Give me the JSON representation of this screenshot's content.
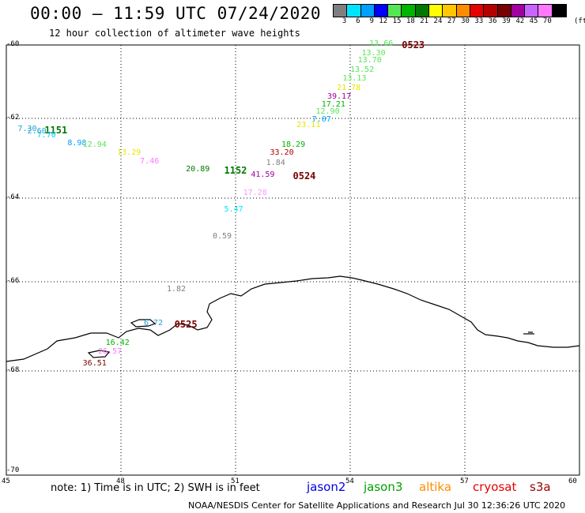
{
  "title": "00:00 – 11:59 UTC 07/24/2020",
  "subtitle": "12 hour collection of altimeter wave heights",
  "colorbar": {
    "unit": "(ft)",
    "bins": [
      {
        "label": "3",
        "color": "#7f7f7f"
      },
      {
        "label": "6",
        "color": "#00e5ff"
      },
      {
        "label": "9",
        "color": "#00a0ff"
      },
      {
        "label": "12",
        "color": "#0000ff"
      },
      {
        "label": "15",
        "color": "#55e655"
      },
      {
        "label": "18",
        "color": "#00b400"
      },
      {
        "label": "21",
        "color": "#007800"
      },
      {
        "label": "24",
        "color": "#ffff00"
      },
      {
        "label": "27",
        "color": "#ffc800"
      },
      {
        "label": "30",
        "color": "#ff8c00"
      },
      {
        "label": "33",
        "color": "#e60000"
      },
      {
        "label": "36",
        "color": "#b40000"
      },
      {
        "label": "39",
        "color": "#780000"
      },
      {
        "label": "42",
        "color": "#a000a0"
      },
      {
        "label": "45",
        "color": "#c864ff"
      },
      {
        "label": "70",
        "color": "#ff78ff"
      },
      {
        "label": "",
        "color": "#000000"
      }
    ]
  },
  "axes": {
    "lat_labels": [
      "-60",
      "-62",
      "-64",
      "-66",
      "-68",
      "-70"
    ],
    "lon_labels": [
      "45",
      "48",
      "51",
      "54",
      "57",
      "60"
    ]
  },
  "observations": [
    {
      "text": "7.30",
      "color": "#20a0d0",
      "lon": 45.3,
      "lat": -62.3
    },
    {
      "text": "2.60",
      "color": "#20a0d0",
      "lon": 45.55,
      "lat": -62.35
    },
    {
      "text": "1151",
      "color": "#007800",
      "lon": 46.0,
      "lat": -62.3,
      "bold": true
    },
    {
      "text": "7.70",
      "color": "#00c8ff",
      "lon": 45.8,
      "lat": -62.45
    },
    {
      "text": "8.98",
      "color": "#00a0ff",
      "lon": 46.6,
      "lat": -62.65
    },
    {
      "text": "12.94",
      "color": "#55e655",
      "lon": 47.0,
      "lat": -62.7
    },
    {
      "text": "13.29",
      "color": "#e6e600",
      "lon": 47.9,
      "lat": -62.9
    },
    {
      "text": "7.46",
      "color": "#ff78ff",
      "lon": 48.5,
      "lat": -63.1
    },
    {
      "text": "20.89",
      "color": "#007800",
      "lon": 49.7,
      "lat": -63.3
    },
    {
      "text": "1152",
      "color": "#007800",
      "lon": 50.7,
      "lat": -63.3,
      "bold": true
    },
    {
      "text": "17.28",
      "color": "#ff96ff",
      "lon": 51.2,
      "lat": -63.9
    },
    {
      "text": "5.47",
      "color": "#00e5ff",
      "lon": 50.7,
      "lat": -64.3
    },
    {
      "text": "0.59",
      "color": "#7f7f7f",
      "lon": 50.4,
      "lat": -64.95
    },
    {
      "text": "13.66",
      "color": "#55e655",
      "lon": 54.5,
      "lat": -60.0
    },
    {
      "text": "0523",
      "color": "#7a0000",
      "lon": 55.35,
      "lat": -60.0,
      "bold": true
    },
    {
      "text": "13.30",
      "color": "#55e655",
      "lon": 54.3,
      "lat": -60.25
    },
    {
      "text": "13.70",
      "color": "#55e655",
      "lon": 54.2,
      "lat": -60.45
    },
    {
      "text": "13.52",
      "color": "#55e655",
      "lon": 54.0,
      "lat": -60.7
    },
    {
      "text": "13.13",
      "color": "#55e655",
      "lon": 53.8,
      "lat": -60.95
    },
    {
      "text": "21.78",
      "color": "#e6e600",
      "lon": 53.65,
      "lat": -61.2
    },
    {
      "text": "39.17",
      "color": "#a000a0",
      "lon": 53.4,
      "lat": -61.45
    },
    {
      "text": "17.21",
      "color": "#00b400",
      "lon": 53.25,
      "lat": -61.65
    },
    {
      "text": "12.90",
      "color": "#55e655",
      "lon": 53.1,
      "lat": -61.85
    },
    {
      "text": "7.07",
      "color": "#00a0ff",
      "lon": 53.0,
      "lat": -62.05
    },
    {
      "text": "23.11",
      "color": "#e6e600",
      "lon": 52.6,
      "lat": -62.2
    },
    {
      "text": "18.29",
      "color": "#00b400",
      "lon": 52.2,
      "lat": -62.7
    },
    {
      "text": "33.20",
      "color": "#b40000",
      "lon": 51.9,
      "lat": -62.9
    },
    {
      "text": "1.84",
      "color": "#7f7f7f",
      "lon": 51.8,
      "lat": -63.15
    },
    {
      "text": "41.59",
      "color": "#a000a0",
      "lon": 51.4,
      "lat": -63.45
    },
    {
      "text": "0524",
      "color": "#7a0000",
      "lon": 52.5,
      "lat": -63.45,
      "bold": true
    },
    {
      "text": "1.82",
      "color": "#7f7f7f",
      "lon": 49.2,
      "lat": -66.2
    },
    {
      "text": "6.72",
      "color": "#20a0d0",
      "lon": 48.6,
      "lat": -66.95
    },
    {
      "text": "0525",
      "color": "#7a0000",
      "lon": 49.4,
      "lat": -66.95,
      "bold": true
    },
    {
      "text": "16.42",
      "color": "#00b400",
      "lon": 47.6,
      "lat": -67.4
    },
    {
      "text": "26.57",
      "color": "#ff78ff",
      "lon": 47.4,
      "lat": -67.6
    },
    {
      "text": "36.51",
      "color": "#780000",
      "lon": 47.0,
      "lat": -67.85
    }
  ],
  "note": "note: 1) Time is in UTC; 2) SWH is in feet",
  "satellites": [
    {
      "name": "jason2",
      "color": "#0000e6"
    },
    {
      "name": "jason3",
      "color": "#00a000"
    },
    {
      "name": "altika",
      "color": "#ff8c00"
    },
    {
      "name": "cryosat",
      "color": "#e60000"
    },
    {
      "name": "s3a",
      "color": "#a00000"
    }
  ],
  "credit": "NOAA/NESDIS Center for Satellite Applications and Research   Jul 30 12:36:26 UTC 2020"
}
